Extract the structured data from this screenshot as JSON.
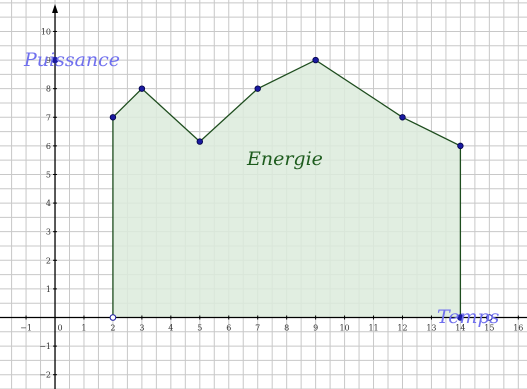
{
  "chart_data": {
    "type": "area",
    "x": [
      2,
      3,
      5,
      7,
      9,
      12,
      14
    ],
    "y": [
      7,
      8,
      6.15,
      8,
      9,
      7,
      6
    ],
    "baseline_points": [
      2,
      14
    ],
    "axis_marker_points": [
      {
        "x": 0,
        "y": 9,
        "fill": "#1a1aa0"
      },
      {
        "x": 2,
        "y": 0,
        "fill": "#ffffff"
      },
      {
        "x": 14,
        "y": 0,
        "fill": "#1a1aa0"
      },
      {
        "x": 15,
        "y": 0,
        "fill": "#ffffff"
      }
    ],
    "xlim": [
      -1.9,
      16.3
    ],
    "ylim": [
      -2.5,
      11.1
    ],
    "xticks": [
      -1,
      0,
      1,
      2,
      3,
      4,
      5,
      6,
      7,
      8,
      9,
      10,
      11,
      12,
      13,
      14,
      15,
      16
    ],
    "yticks": [
      -2,
      -1,
      1,
      2,
      3,
      4,
      5,
      6,
      7,
      8,
      9,
      10
    ],
    "grid_minor_step": 0.5,
    "grid": true,
    "ylabel": "Puissance",
    "xlabel": "Temps",
    "area_label": "Energie",
    "colors": {
      "fill": "#dcebdc",
      "line": "#1e4d1e",
      "points": "#1a1aa0",
      "axis_label": "#7070ee",
      "area_label": "#1e5c1e"
    }
  }
}
